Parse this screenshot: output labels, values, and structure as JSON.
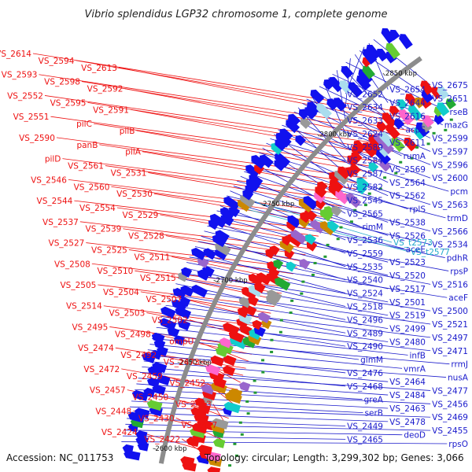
{
  "title": "Vibrio splendidus LGP32 chromosome 1, complete genome",
  "footer": {
    "accession_label": "Accession: NC_011753",
    "topology_label": "Topology: circular; Length: 3,299,302 bp; Genes: 3,066"
  },
  "colors": {
    "left_labels": "#ee1111",
    "right_labels": "#1a1acc",
    "trna_labels": "#22aacc",
    "backbone": "#888888",
    "forward_arrows": "#ee1111",
    "reverse_arrows": "#1111ee",
    "scale_ticks": "#229933"
  },
  "scale_marks": [
    "2850 kbp",
    "2800 kbp",
    "2750 kbp",
    "2700 kbp",
    "2650 kbp",
    "2600 kbp"
  ],
  "left_labels": [
    "VS_2614",
    "VS_2594",
    "VS_2613",
    "VS_2593",
    "VS_2598",
    "VS_2592",
    "VS_2552",
    "VS_2595",
    "VS_2591",
    "VS_2551",
    "pilC",
    "pilB",
    "VS_2590",
    "panB",
    "pilA",
    "pilD",
    "VS_2561",
    "VS_2531",
    "VS_2546",
    "VS_2560",
    "VS_2530",
    "VS_2544",
    "VS_2554",
    "VS_2529",
    "VS_2537",
    "VS_2539",
    "VS_2528",
    "VS_2527",
    "VS_2525",
    "VS_2511",
    "VS_2508",
    "VS_2510",
    "VS_2515",
    "VS_2505",
    "VS_2504",
    "VS_2507",
    "VS_2514",
    "VS_2503",
    "VS_2502",
    "VS_2495",
    "VS_2498",
    "ompU",
    "VS_2474",
    "VS_2492",
    "VS_2473",
    "VS_2472",
    "VS_2459",
    "VS_2452",
    "VS_2457",
    "VS_2450",
    "VS_2453",
    "VS_2448",
    "VS_2430",
    "VS_2427",
    "VS_2424",
    "VS_2422"
  ],
  "right_labels": [
    "VS_2675",
    "VS_2654",
    "VS_2652",
    "VS_2651",
    "VS_2644",
    "VS_2634",
    "rseB",
    "VS_2616",
    "VS_2633",
    "mazG",
    "acpS",
    "VS_2624",
    "VS_2599",
    "VS_2611",
    "VS_2589",
    "VS_2597",
    "rumA",
    "VS_2584",
    "VS_2596",
    "VS_2569",
    "VS_2587",
    "VS_2600",
    "VS_2564",
    "VS_2582",
    "pcm",
    "VS_2562",
    "VS_2545",
    "VS_2563",
    "rplS",
    "VS_2565",
    "trmD",
    "VS_2538",
    "rimM",
    "VS_2566",
    "VS_2526",
    "VS_2536",
    "VS_2534",
    "aceE",
    "VS_2559",
    "pdhR",
    "VS_2523",
    "VS_2535",
    "rpsP",
    "VS_2520",
    "VS_2540",
    "VS_2516",
    "VS_2517",
    "VS_2524",
    "aceF",
    "VS_2501",
    "VS_2518",
    "VS_2500",
    "VS_2519",
    "VS_2496",
    "VS_2521",
    "VS_2499",
    "VS_2489",
    "VS_2497",
    "VS_2480",
    "VS_2490",
    "VS_2471",
    "infB",
    "glmM",
    "rrmJ",
    "vmrA",
    "VS_2476",
    "nusA",
    "VS_2464",
    "VS_2468",
    "VS_2477",
    "VS_2484",
    "greA",
    "VS_2456",
    "VS_2463",
    "serB",
    "VS_2469",
    "VS_2478",
    "VS_2449",
    "VS_2455",
    "deoD",
    "VS_2465",
    "rpsO"
  ],
  "trna_labels": [
    "VS_t2573",
    "VS_t2577"
  ]
}
